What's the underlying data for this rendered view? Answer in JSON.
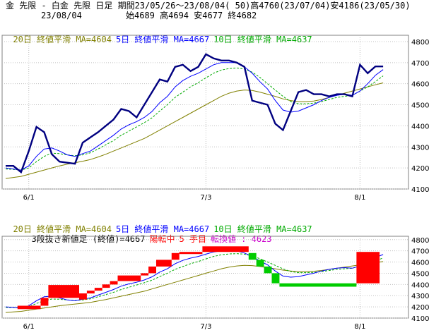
{
  "header": {
    "line1": "金 先限 - 白金 先限 日足 期間23/05/26～23/08/04( 50)高4760(23/07/04)安4186(23/05/30)",
    "date": "23/08/04",
    "ohlc": "始4689 高4694 安4677 終4682"
  },
  "legend_top": {
    "ma20": "20日 終値平滑 MA=4604",
    "ma5": "5日 終値平滑 MA=4667",
    "ma10": "10日 終値平滑 MA=4637"
  },
  "legend_bottom": {
    "ma20": "20日 終値平滑 MA=4604",
    "ma5": "5日 終値平滑 MA=4667",
    "ma10": "10日 終値平滑 MA=4637",
    "kagi_label": "3段抜き新値足 (終値)=4667",
    "kagi_state": "陽転中",
    "kagi_steps": "5 手目",
    "kagi_reversal": "転換値 : 4623"
  },
  "colors": {
    "close": "#000080",
    "ma5": "#0000ff",
    "ma10": "#00aa00",
    "ma20": "#808000",
    "up_block": "#ff0000",
    "down_block": "#00cc00",
    "grid": "#c0c0c0",
    "legend_ma20": "#808000",
    "legend_ma5": "#0000ff",
    "legend_ma10": "#00aa00",
    "legend_kagi_label": "#000000",
    "legend_kagi_highlight": "#ff0000",
    "legend_kagi_reversal": "#cc00cc"
  },
  "chart_data": [
    {
      "type": "line",
      "panel": "price",
      "x_tick_labels": [
        "6/1",
        "7/3",
        "8/1"
      ],
      "y_ticks": [
        4100,
        4200,
        4300,
        4400,
        4500,
        4600,
        4700,
        4800
      ],
      "ylim": [
        4100,
        4830
      ],
      "series": [
        {
          "name": "close",
          "values": [
            4210,
            4210,
            4180,
            4280,
            4395,
            4370,
            4265,
            4230,
            4225,
            4220,
            4320,
            4345,
            4370,
            4400,
            4430,
            4480,
            4470,
            4440,
            4500,
            4560,
            4620,
            4610,
            4680,
            4690,
            4660,
            4680,
            4740,
            4720,
            4710,
            4710,
            4700,
            4680,
            4520,
            4510,
            4500,
            4410,
            4380,
            4470,
            4560,
            4570,
            4550,
            4550,
            4540,
            4550,
            4550,
            4540,
            4690,
            4650,
            4682,
            4682
          ]
        },
        {
          "name": "MA=4667",
          "values": [
            4200,
            4195,
            4190,
            4210,
            4255,
            4290,
            4295,
            4280,
            4262,
            4255,
            4268,
            4280,
            4305,
            4330,
            4355,
            4385,
            4405,
            4420,
            4440,
            4468,
            4510,
            4540,
            4585,
            4615,
            4635,
            4650,
            4670,
            4690,
            4700,
            4700,
            4700,
            4680,
            4650,
            4610,
            4575,
            4520,
            4475,
            4465,
            4470,
            4485,
            4500,
            4520,
            4535,
            4545,
            4550,
            4545,
            4565,
            4600,
            4640,
            4667
          ]
        },
        {
          "name": "MA=4637",
          "values": [
            4195,
            4193,
            4190,
            4200,
            4230,
            4255,
            4270,
            4268,
            4262,
            4258,
            4262,
            4272,
            4290,
            4310,
            4330,
            4355,
            4375,
            4395,
            4415,
            4438,
            4470,
            4500,
            4535,
            4560,
            4585,
            4605,
            4628,
            4650,
            4665,
            4672,
            4675,
            4670,
            4655,
            4630,
            4600,
            4570,
            4540,
            4515,
            4505,
            4505,
            4508,
            4515,
            4525,
            4535,
            4540,
            4545,
            4565,
            4585,
            4610,
            4637
          ]
        },
        {
          "name": "MA=4604",
          "values": [
            4150,
            4155,
            4160,
            4170,
            4180,
            4190,
            4200,
            4210,
            4218,
            4225,
            4232,
            4240,
            4252,
            4265,
            4280,
            4295,
            4310,
            4325,
            4340,
            4360,
            4380,
            4400,
            4420,
            4440,
            4460,
            4480,
            4500,
            4520,
            4540,
            4555,
            4565,
            4570,
            4568,
            4560,
            4550,
            4540,
            4528,
            4520,
            4515,
            4515,
            4518,
            4525,
            4535,
            4545,
            4555,
            4565,
            4575,
            4585,
            4595,
            4604
          ]
        }
      ]
    },
    {
      "type": "bar",
      "panel": "kagi",
      "x_tick_labels": [
        "6/1",
        "7/3",
        "8/1"
      ],
      "y_ticks": [
        4100,
        4200,
        4300,
        4400,
        4500,
        4600,
        4700,
        4800
      ],
      "ylim": [
        4100,
        4830
      ],
      "blocks": [
        {
          "day": 2,
          "dir": "up",
          "low": 4180,
          "high": 4210
        },
        {
          "day": 5,
          "dir": "up",
          "low": 4210,
          "high": 4280
        },
        {
          "day": 6,
          "dir": "up",
          "low": 4280,
          "high": 4395
        },
        {
          "day": 10,
          "dir": "up",
          "low": 4265,
          "high": 4320
        },
        {
          "day": 11,
          "dir": "up",
          "low": 4320,
          "high": 4345
        },
        {
          "day": 12,
          "dir": "up",
          "low": 4345,
          "high": 4370
        },
        {
          "day": 13,
          "dir": "up",
          "low": 4370,
          "high": 4400
        },
        {
          "day": 14,
          "dir": "up",
          "low": 4400,
          "high": 4430
        },
        {
          "day": 15,
          "dir": "up",
          "low": 4430,
          "high": 4480
        },
        {
          "day": 18,
          "dir": "up",
          "low": 4480,
          "high": 4500
        },
        {
          "day": 19,
          "dir": "up",
          "low": 4500,
          "high": 4560
        },
        {
          "day": 20,
          "dir": "up",
          "low": 4560,
          "high": 4620
        },
        {
          "day": 22,
          "dir": "up",
          "low": 4620,
          "high": 4680
        },
        {
          "day": 23,
          "dir": "up",
          "low": 4680,
          "high": 4690
        },
        {
          "day": 26,
          "dir": "up",
          "low": 4690,
          "high": 4740
        },
        {
          "day": 32,
          "dir": "down",
          "low": 4620,
          "high": 4680
        },
        {
          "day": 33,
          "dir": "down",
          "low": 4560,
          "high": 4620
        },
        {
          "day": 34,
          "dir": "down",
          "low": 4500,
          "high": 4560
        },
        {
          "day": 35,
          "dir": "down",
          "low": 4410,
          "high": 4500
        },
        {
          "day": 36,
          "dir": "down",
          "low": 4380,
          "high": 4410
        },
        {
          "day": 46,
          "dir": "up",
          "low": 4410,
          "high": 4690
        }
      ]
    }
  ]
}
